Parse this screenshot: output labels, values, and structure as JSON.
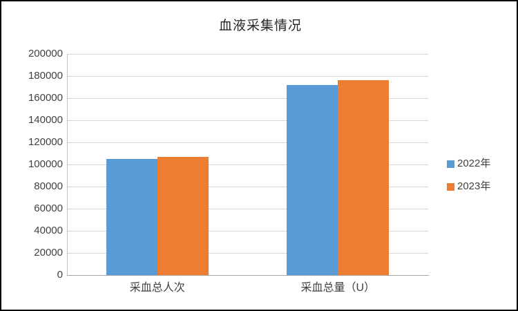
{
  "chart_data": {
    "type": "bar",
    "title": "血液采集情况",
    "categories": [
      "采血总人次",
      "采血总量（U）"
    ],
    "series": [
      {
        "name": "2022年",
        "color": "#5B9BD5",
        "values": [
          105000,
          172000
        ]
      },
      {
        "name": "2023年",
        "color": "#ED7D31",
        "values": [
          107000,
          176500
        ]
      }
    ],
    "xlabel": "",
    "ylabel": "",
    "ylim": [
      0,
      200000
    ],
    "ytick_step": 20000,
    "ytick_labels": [
      "0",
      "20000",
      "40000",
      "60000",
      "80000",
      "100000",
      "120000",
      "140000",
      "160000",
      "180000",
      "200000"
    ],
    "grid": "horizontal",
    "legend_position": "right",
    "colors": {
      "gridline": "#d6d6d6",
      "axis": "#a6a6a6",
      "text": "#404040",
      "title": "#262626",
      "background": "#ffffff",
      "frame_border": "#000000"
    }
  }
}
